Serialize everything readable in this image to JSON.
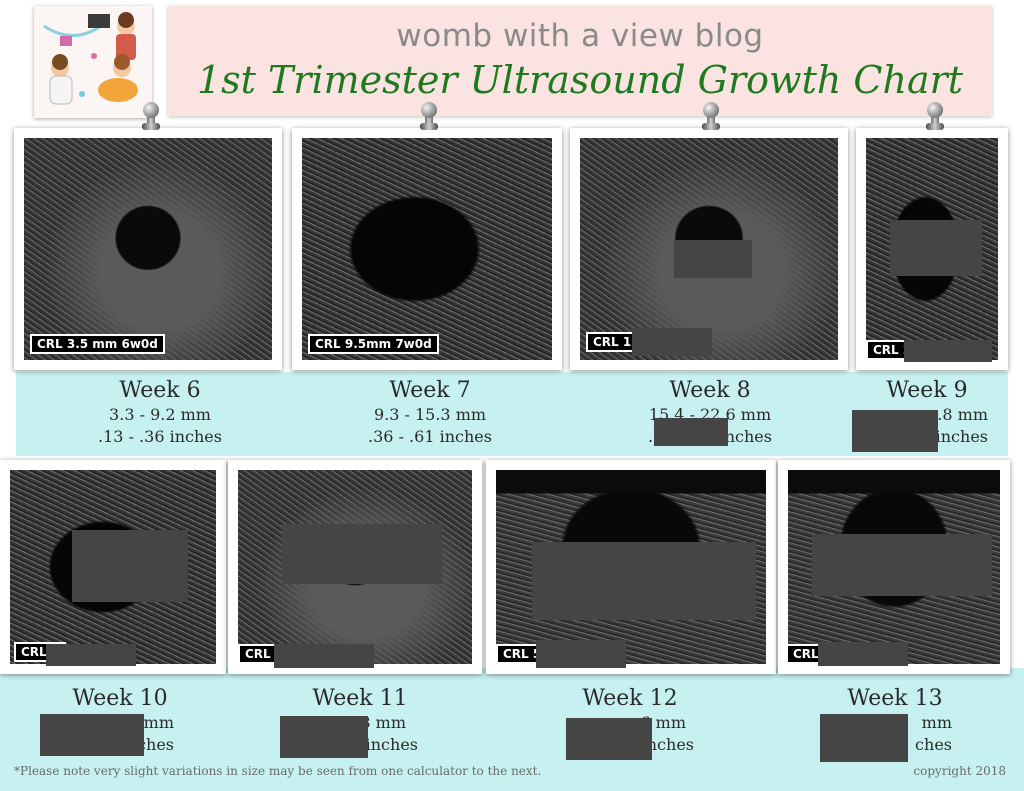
{
  "header": {
    "blog_name": "womb with a view blog",
    "title": "1st Trimester Ultrasound Growth Chart"
  },
  "scans": [
    {
      "week_label": "Week 6",
      "crl_text": "CRL 3.5 mm 6w0d",
      "mm_text": "3.3 - 9.2 mm",
      "inch_text": ".13 - .36 inches"
    },
    {
      "week_label": "Week 7",
      "crl_text": "CRL 9.5mm 7w0d",
      "mm_text": "9.3 - 15.3 mm",
      "inch_text": ".36 - .61 inches"
    },
    {
      "week_label": "Week 8",
      "crl_text": "CRL 1            d",
      "mm_text": "15.4 - 22.6 mm",
      "inch_text": ".61 - .89 inches"
    },
    {
      "week_label": "Week 9",
      "crl_text": "CRL 2            d",
      "mm_text": ".8 mm",
      "inch_text": "inches"
    },
    {
      "week_label": "Week 10",
      "crl_text": "CRL            d",
      "mm_text": "mm",
      "inch_text": "ches"
    },
    {
      "week_label": "Week 11",
      "crl_text": "CRL            d",
      "mm_text": "8 mm",
      "inch_text": "inches"
    },
    {
      "week_label": "Week 12",
      "crl_text": "CRL 5            d",
      "mm_text": "6 mm",
      "inch_text": "inches"
    },
    {
      "week_label": "Week 13",
      "crl_text": "CRL            d",
      "mm_text": "mm",
      "inch_text": "ches"
    }
  ],
  "footer": {
    "note": "*Please note very slight variations in size may be seen from one calculator to the next.",
    "copyright": "copyright 2018"
  },
  "colors": {
    "title_green": "#1f7a1f",
    "banner_pink": "#fbe3e1",
    "band_teal": "#c7f1f1",
    "redaction_gray": "#454545"
  }
}
